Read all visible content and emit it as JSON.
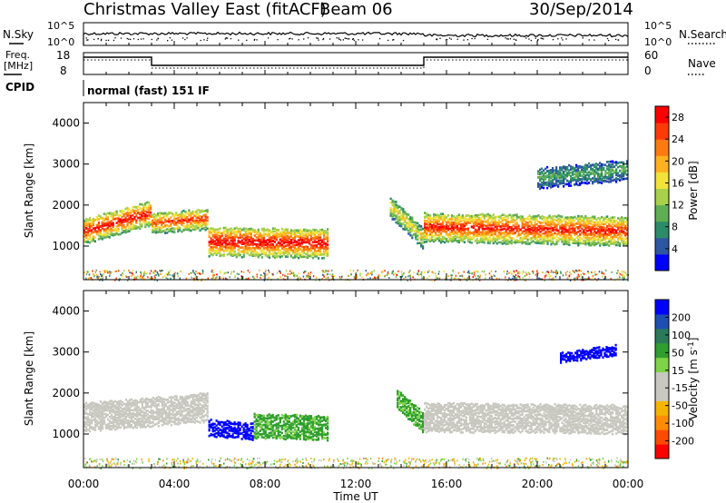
{
  "header": {
    "title": "Christmas Valley East (fitACF)",
    "beam": "Beam 06",
    "date": "30/Sep/2014"
  },
  "summary_panels": {
    "nsky_label": "N.Sky",
    "nsky_ticks": [
      "10^5",
      "10^0"
    ],
    "nsearch_label": "N.Search",
    "nsearch_ticks": [
      "10^5",
      "10^0"
    ],
    "freq_label_1": "Freq.",
    "freq_label_2": "[MHz]",
    "freq_ticks": [
      "18",
      "8"
    ],
    "nave_label": "Nave",
    "nave_ticks": [
      "60",
      "0"
    ],
    "cpid_label": "CPID",
    "cpid_value": "normal (fast) 151 IF"
  },
  "colorbars": {
    "power": {
      "label": "Power [dB]",
      "ticks": [
        "28",
        "24",
        "20",
        "16",
        "12",
        "8",
        "4"
      ],
      "colors": [
        "#0000ff",
        "#2f56a0",
        "#2c8c6a",
        "#5fae54",
        "#a8d04a",
        "#f2e23a",
        "#ffb020",
        "#ff7a10",
        "#ff3a08",
        "#ff0000"
      ]
    },
    "velocity": {
      "label": "Velocity [m s",
      "label_sup": "-1",
      "label_end": "]",
      "ticks": [
        "200",
        "100",
        "50",
        "15",
        "-15",
        "-50",
        "-100",
        "-200"
      ],
      "colors": [
        "#ff0000",
        "#ff4a00",
        "#ff8c00",
        "#f5b400",
        "#c8c8c0",
        "#c8c8c0",
        "#7ed348",
        "#2e9e2e",
        "#2a7a5a",
        "#1e4fb0",
        "#0000ff"
      ]
    }
  },
  "axes": {
    "ylabel": "Slant Range [km]",
    "yticks": [
      "4000",
      "3000",
      "2000",
      "1000"
    ],
    "xticks": [
      "00:00",
      "04:00",
      "08:00",
      "12:00",
      "16:00",
      "20:00",
      "00:00"
    ],
    "xlabel": "Time UT"
  },
  "chart_data": [
    {
      "type": "heatmap",
      "title": "Power",
      "xlabel": "",
      "ylabel": "Slant Range [km]",
      "x_range_hours": [
        0,
        24
      ],
      "ylim": [
        180,
        4500
      ],
      "colorbar_ticks": [
        4,
        8,
        12,
        16,
        20,
        24,
        28
      ],
      "colorbar_range": [
        0,
        30
      ],
      "units": "dB",
      "bands": [
        {
          "t": [
            0,
            3
          ],
          "center_km": [
            1400,
            1850
          ],
          "width_km": 600,
          "peak_db": 29
        },
        {
          "t": [
            3,
            5.5
          ],
          "center_km": [
            1600,
            1700
          ],
          "width_km": 500,
          "peak_db": 26
        },
        {
          "t": [
            5.5,
            10.8
          ],
          "center_km": [
            1150,
            1100
          ],
          "width_km": 700,
          "peak_db": 30
        },
        {
          "t": [
            13.5,
            15
          ],
          "center_km": [
            2000,
            1200
          ],
          "width_km": 500,
          "peak_db": 18
        },
        {
          "t": [
            15,
            24
          ],
          "center_km": [
            1500,
            1400
          ],
          "width_km": 700,
          "peak_db": 28
        },
        {
          "t": [
            20,
            24
          ],
          "center_km": [
            2700,
            2900
          ],
          "width_km": 500,
          "peak_db": 10
        }
      ]
    },
    {
      "type": "heatmap",
      "title": "Velocity",
      "xlabel": "Time UT",
      "ylabel": "Slant Range [km]",
      "x_range_hours": [
        0,
        24
      ],
      "ylim": [
        180,
        4500
      ],
      "colorbar_ticks": [
        -200,
        -100,
        -50,
        -15,
        15,
        50,
        100,
        200
      ],
      "units": "m s-1",
      "bands": [
        {
          "t": [
            0,
            5.5
          ],
          "center_km": [
            1450,
            1700
          ],
          "width_km": 700,
          "velocity": 0
        },
        {
          "t": [
            5.5,
            7.5
          ],
          "center_km": [
            1200,
            1100
          ],
          "width_km": 400,
          "velocity": 220
        },
        {
          "t": [
            7.5,
            10.8
          ],
          "center_km": [
            1250,
            1200
          ],
          "width_km": 600,
          "velocity": 60
        },
        {
          "t": [
            13.8,
            15
          ],
          "center_km": [
            1900,
            1300
          ],
          "width_km": 500,
          "velocity": 60
        },
        {
          "t": [
            15,
            24
          ],
          "center_km": [
            1450,
            1400
          ],
          "width_km": 700,
          "velocity": 0
        },
        {
          "t": [
            21,
            23.5
          ],
          "center_km": [
            2900,
            3100
          ],
          "width_km": 250,
          "velocity": 250
        }
      ]
    }
  ]
}
